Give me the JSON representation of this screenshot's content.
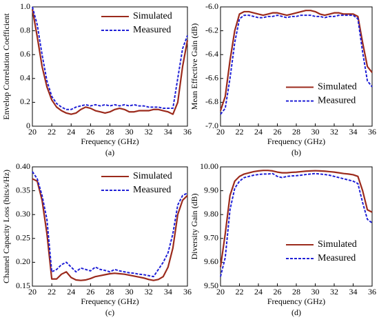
{
  "chart_data": [
    {
      "type": "line",
      "caption": "(a)",
      "xlabel": "Frequency (GHz)",
      "ylabel": "Envelop Correlation Coefficient",
      "x": [
        20,
        20.5,
        21,
        21.5,
        22,
        22.5,
        23,
        23.5,
        24,
        24.5,
        25,
        25.5,
        26,
        26.5,
        27,
        27.5,
        28,
        28.5,
        29,
        29.5,
        30,
        30.5,
        31,
        31.5,
        32,
        32.5,
        33,
        33.5,
        34,
        34.5,
        35,
        35.5,
        36
      ],
      "series": [
        {
          "name": "Simulated",
          "color": "#9b2a1c",
          "values": [
            0.98,
            0.75,
            0.5,
            0.33,
            0.22,
            0.16,
            0.13,
            0.11,
            0.1,
            0.11,
            0.14,
            0.16,
            0.15,
            0.13,
            0.12,
            0.11,
            0.12,
            0.14,
            0.15,
            0.14,
            0.12,
            0.12,
            0.13,
            0.13,
            0.13,
            0.14,
            0.14,
            0.13,
            0.12,
            0.1,
            0.2,
            0.5,
            0.72
          ]
        },
        {
          "name": "Measured",
          "color": "#1f1fd6",
          "dashed": true,
          "values": [
            1.0,
            0.85,
            0.6,
            0.38,
            0.25,
            0.19,
            0.16,
            0.14,
            0.14,
            0.16,
            0.17,
            0.18,
            0.17,
            0.18,
            0.17,
            0.18,
            0.17,
            0.18,
            0.17,
            0.18,
            0.17,
            0.18,
            0.17,
            0.17,
            0.16,
            0.16,
            0.16,
            0.15,
            0.15,
            0.15,
            0.4,
            0.65,
            0.76
          ]
        }
      ],
      "xlim": [
        20,
        36
      ],
      "xticks": [
        20,
        22,
        24,
        26,
        28,
        30,
        32,
        34,
        36
      ],
      "ylim": [
        0,
        1
      ],
      "yticks": [
        0,
        0.2,
        0.4,
        0.6,
        0.8,
        {
          "value": 1,
          "label": "1.0"
        }
      ],
      "legend": "upper right"
    },
    {
      "type": "line",
      "caption": "(b)",
      "xlabel": "Frequency (GHz)",
      "ylabel": "Mean Effective Gain (dB)",
      "x": [
        20,
        20.5,
        21,
        21.5,
        22,
        22.5,
        23,
        23.5,
        24,
        24.5,
        25,
        25.5,
        26,
        26.5,
        27,
        27.5,
        28,
        28.5,
        29,
        29.5,
        30,
        30.5,
        31,
        31.5,
        32,
        32.5,
        33,
        33.5,
        34,
        34.5,
        35,
        35.5,
        36
      ],
      "series": [
        {
          "name": "Simulated",
          "color": "#9b2a1c",
          "values": [
            -6.87,
            -6.75,
            -6.45,
            -6.2,
            -6.06,
            -6.04,
            -6.04,
            -6.05,
            -6.06,
            -6.07,
            -6.06,
            -6.05,
            -6.05,
            -6.06,
            -6.07,
            -6.06,
            -6.05,
            -6.04,
            -6.03,
            -6.03,
            -6.04,
            -6.06,
            -6.07,
            -6.06,
            -6.05,
            -6.05,
            -6.06,
            -6.06,
            -6.06,
            -6.08,
            -6.3,
            -6.5,
            -6.55
          ]
        },
        {
          "name": "Measured",
          "color": "#1f1fd6",
          "dashed": true,
          "values": [
            -6.9,
            -6.85,
            -6.6,
            -6.3,
            -6.1,
            -6.07,
            -6.07,
            -6.08,
            -6.09,
            -6.09,
            -6.08,
            -6.08,
            -6.07,
            -6.08,
            -6.09,
            -6.08,
            -6.08,
            -6.07,
            -6.07,
            -6.07,
            -6.08,
            -6.08,
            -6.09,
            -6.08,
            -6.08,
            -6.07,
            -6.07,
            -6.07,
            -6.07,
            -6.1,
            -6.38,
            -6.62,
            -6.67
          ]
        }
      ],
      "xlim": [
        20,
        36
      ],
      "xticks": [
        20,
        22,
        24,
        26,
        28,
        30,
        32,
        34,
        36
      ],
      "ylim": [
        -7,
        -6
      ],
      "yticks": [
        {
          "value": -7,
          "label": "-7.0"
        },
        -6.8,
        -6.6,
        -6.4,
        -6.2,
        {
          "value": -6,
          "label": "-6.0"
        }
      ],
      "legend": "center right"
    },
    {
      "type": "line",
      "caption": "(c)",
      "xlabel": "Frequency (GHz)",
      "ylabel": "Channel Capacity Loss (bits/s/Hz)",
      "x": [
        20,
        20.5,
        21,
        21.5,
        22,
        22.5,
        23,
        23.5,
        24,
        24.5,
        25,
        25.5,
        26,
        26.5,
        27,
        27.5,
        28,
        28.5,
        29,
        29.5,
        30,
        30.5,
        31,
        31.5,
        32,
        32.5,
        33,
        33.5,
        34,
        34.5,
        35,
        35.5,
        36
      ],
      "series": [
        {
          "name": "Simulated",
          "color": "#9b2a1c",
          "values": [
            0.375,
            0.37,
            0.33,
            0.26,
            0.165,
            0.165,
            0.175,
            0.18,
            0.168,
            0.163,
            0.162,
            0.163,
            0.166,
            0.17,
            0.172,
            0.174,
            0.176,
            0.177,
            0.176,
            0.175,
            0.173,
            0.171,
            0.169,
            0.167,
            0.164,
            0.162,
            0.164,
            0.17,
            0.19,
            0.23,
            0.3,
            0.33,
            0.34
          ]
        },
        {
          "name": "Measured",
          "color": "#1f1fd6",
          "dashed": true,
          "values": [
            0.39,
            0.375,
            0.34,
            0.29,
            0.18,
            0.185,
            0.195,
            0.2,
            0.19,
            0.18,
            0.188,
            0.185,
            0.182,
            0.19,
            0.185,
            0.183,
            0.18,
            0.185,
            0.182,
            0.18,
            0.178,
            0.177,
            0.175,
            0.174,
            0.172,
            0.17,
            0.185,
            0.2,
            0.22,
            0.26,
            0.32,
            0.34,
            0.345
          ]
        }
      ],
      "xlim": [
        20,
        36
      ],
      "xticks": [
        20,
        22,
        24,
        26,
        28,
        30,
        32,
        34,
        36
      ],
      "ylim": [
        0.15,
        0.4
      ],
      "yticks": [
        0.15,
        {
          "value": 0.2,
          "label": "0.20"
        },
        0.25,
        {
          "value": 0.3,
          "label": "0.30"
        },
        0.35,
        {
          "value": 0.4,
          "label": "0.40"
        }
      ],
      "legend": "upper right"
    },
    {
      "type": "line",
      "caption": "(d)",
      "xlabel": "Frequency (GHz)",
      "ylabel": "Diversity Gain (dB)",
      "x": [
        20,
        20.5,
        21,
        21.5,
        22,
        22.5,
        23,
        23.5,
        24,
        24.5,
        25,
        25.5,
        26,
        26.5,
        27,
        27.5,
        28,
        28.5,
        29,
        29.5,
        30,
        30.5,
        31,
        31.5,
        32,
        32.5,
        33,
        33.5,
        34,
        34.5,
        35,
        35.5,
        36
      ],
      "series": [
        {
          "name": "Simulated",
          "color": "#9b2a1c",
          "values": [
            9.58,
            9.72,
            9.88,
            9.94,
            9.96,
            9.97,
            9.975,
            9.98,
            9.983,
            9.985,
            9.985,
            9.983,
            9.978,
            9.975,
            9.975,
            9.977,
            9.978,
            9.98,
            9.982,
            9.983,
            9.984,
            9.983,
            9.982,
            9.98,
            9.978,
            9.975,
            9.972,
            9.97,
            9.967,
            9.96,
            9.9,
            9.82,
            9.81
          ]
        },
        {
          "name": "Measured",
          "color": "#1f1fd6",
          "dashed": true,
          "values": [
            9.54,
            9.62,
            9.82,
            9.91,
            9.94,
            9.955,
            9.96,
            9.965,
            9.968,
            9.97,
            9.97,
            9.972,
            9.96,
            9.955,
            9.96,
            9.962,
            9.963,
            9.965,
            9.968,
            9.97,
            9.972,
            9.97,
            9.968,
            9.965,
            9.96,
            9.955,
            9.95,
            9.945,
            9.94,
            9.93,
            9.85,
            9.78,
            9.765
          ]
        }
      ],
      "xlim": [
        20,
        36
      ],
      "xticks": [
        20,
        22,
        24,
        26,
        28,
        30,
        32,
        34,
        36
      ],
      "ylim": [
        9.5,
        10
      ],
      "yticks": [
        {
          "value": 9.5,
          "label": "9.50"
        },
        {
          "value": 9.6,
          "label": "9.60"
        },
        {
          "value": 9.7,
          "label": "9.70"
        },
        {
          "value": 9.8,
          "label": "9.80"
        },
        {
          "value": 9.9,
          "label": "9.90"
        },
        {
          "value": 10,
          "label": "10.00"
        }
      ],
      "legend": "lower right"
    }
  ]
}
